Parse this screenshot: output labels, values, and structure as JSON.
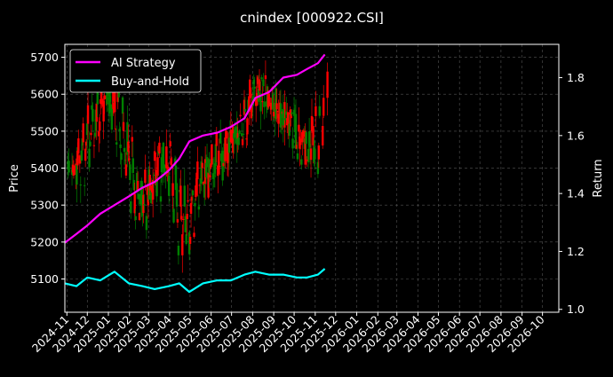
{
  "chart_data": {
    "type": "line",
    "title": "cnindex [000922.CSI]",
    "background": "#000000",
    "grid": true,
    "legend_placement": "top-left",
    "left_axis": {
      "label": "Price",
      "ylim": [
        5010,
        5735
      ],
      "ticks": [
        5100,
        5200,
        5300,
        5400,
        5500,
        5600,
        5700
      ],
      "tick_labels": [
        "5100",
        "5200",
        "5300",
        "5400",
        "5500",
        "5600",
        "5700"
      ]
    },
    "right_axis": {
      "label": "Return",
      "ylim": [
        0.99,
        1.915
      ],
      "ticks": [
        1.0,
        1.2,
        1.4,
        1.6,
        1.8
      ],
      "tick_labels": [
        "1.0",
        "1.2",
        "1.4",
        "1.6",
        "1.8"
      ]
    },
    "x_axis": {
      "label": "",
      "range": [
        "2024-10-29",
        "2026-10-25"
      ],
      "tick_labels": [
        "2024-11",
        "2024-12",
        "2025-01",
        "2025-02",
        "2025-03",
        "2025-04",
        "2025-05",
        "2025-06",
        "2025-07",
        "2025-08",
        "2025-09",
        "2025-10",
        "2025-11",
        "2025-12",
        "2026-01",
        "2026-02",
        "2026-03",
        "2026-04",
        "2026-05",
        "2026-06",
        "2026-07",
        "2026-08",
        "2026-09",
        "2026-10"
      ]
    },
    "candlestick_colors": {
      "up": "#ff0000",
      "down": "#008000"
    },
    "candles": {
      "dates": [
        "2024-10-28",
        "2024-11-04",
        "2024-11-11",
        "2024-11-18",
        "2024-11-25",
        "2024-12-02",
        "2024-12-09",
        "2024-12-16",
        "2024-12-23",
        "2024-12-30",
        "2025-01-06",
        "2025-01-13",
        "2025-01-20",
        "2025-01-27",
        "2025-02-03",
        "2025-02-10",
        "2025-02-17",
        "2025-02-24",
        "2025-03-03",
        "2025-03-10",
        "2025-03-17",
        "2025-03-24",
        "2025-03-31",
        "2025-04-07",
        "2025-04-14",
        "2025-04-21",
        "2025-04-28",
        "2025-05-05",
        "2025-05-12",
        "2025-05-19",
        "2025-05-26",
        "2025-06-02",
        "2025-06-09",
        "2025-06-16",
        "2025-06-23",
        "2025-06-30",
        "2025-07-07",
        "2025-07-14",
        "2025-07-21",
        "2025-07-28",
        "2025-08-04",
        "2025-08-11",
        "2025-08-18",
        "2025-08-25",
        "2025-09-01",
        "2025-09-08",
        "2025-09-15",
        "2025-09-22",
        "2025-09-29",
        "2025-10-06",
        "2025-10-13",
        "2025-10-20",
        "2025-10-27"
      ],
      "values": [
        5420,
        5380,
        5440,
        5470,
        5520,
        5560,
        5610,
        5580,
        5620,
        5560,
        5470,
        5440,
        5380,
        5310,
        5270,
        5330,
        5360,
        5340,
        5420,
        5440,
        5410,
        5380,
        5290,
        5190,
        5260,
        5310,
        5340,
        5370,
        5400,
        5430,
        5410,
        5460,
        5440,
        5480,
        5470,
        5510,
        5540,
        5560,
        5590,
        5620,
        5610,
        5580,
        5570,
        5540,
        5520,
        5560,
        5520,
        5480,
        5440,
        5470,
        5420,
        5500,
        5640
      ]
    },
    "series": [
      {
        "name": "AI Strategy",
        "axis": "right",
        "color": "#ff00ff",
        "dates": [
          "2024-10-29",
          "2024-11-15",
          "2024-12-01",
          "2024-12-20",
          "2025-01-10",
          "2025-01-31",
          "2025-02-20",
          "2025-03-10",
          "2025-03-31",
          "2025-04-15",
          "2025-04-30",
          "2025-05-20",
          "2025-06-10",
          "2025-06-30",
          "2025-07-20",
          "2025-08-05",
          "2025-08-25",
          "2025-09-15",
          "2025-10-05",
          "2025-10-20",
          "2025-11-05",
          "2025-11-15"
        ],
        "values": [
          1.23,
          1.26,
          1.29,
          1.33,
          1.36,
          1.39,
          1.42,
          1.44,
          1.48,
          1.52,
          1.58,
          1.6,
          1.61,
          1.63,
          1.66,
          1.73,
          1.75,
          1.8,
          1.81,
          1.83,
          1.85,
          1.88
        ]
      },
      {
        "name": "Buy-and-Hold",
        "axis": "right",
        "color": "#00ffff",
        "dates": [
          "2024-10-29",
          "2024-11-15",
          "2024-12-01",
          "2024-12-20",
          "2025-01-10",
          "2025-01-31",
          "2025-02-20",
          "2025-03-10",
          "2025-03-31",
          "2025-04-15",
          "2025-04-30",
          "2025-05-20",
          "2025-06-10",
          "2025-06-30",
          "2025-07-20",
          "2025-08-05",
          "2025-08-25",
          "2025-09-15",
          "2025-10-05",
          "2025-10-20",
          "2025-11-05",
          "2025-11-15"
        ],
        "values": [
          1.09,
          1.08,
          1.11,
          1.1,
          1.13,
          1.09,
          1.08,
          1.07,
          1.08,
          1.09,
          1.06,
          1.09,
          1.1,
          1.1,
          1.12,
          1.13,
          1.12,
          1.12,
          1.11,
          1.11,
          1.12,
          1.14
        ]
      }
    ]
  }
}
